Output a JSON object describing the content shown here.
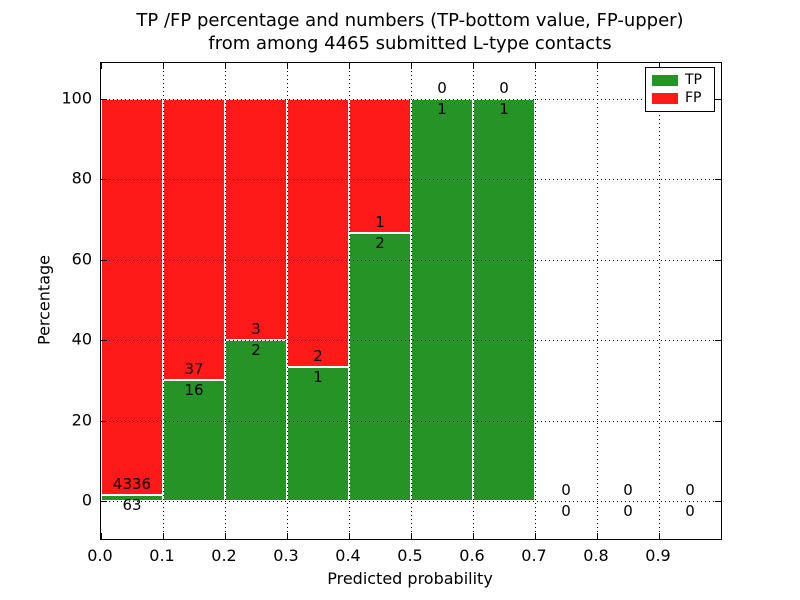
{
  "figure": {
    "title_line1": "TP /FP percentage and numbers (TP-bottom value, FP-upper)",
    "title_line2": "from among 4465 submitted L-type contacts"
  },
  "chart_data": {
    "type": "bar",
    "stacked": true,
    "orientation": "vertical",
    "title": "TP /FP percentage and numbers (TP-bottom value, FP-upper) from among 4465 submitted L-type contacts",
    "xlabel": "Predicted probability",
    "ylabel": "Percentage",
    "xlim": [
      0.0,
      1.0
    ],
    "ylim": [
      -10,
      110
    ],
    "grid": "dotted",
    "legend_position": "upper right",
    "xticks": [
      0.0,
      0.1,
      0.2,
      0.3,
      0.4,
      0.5,
      0.6,
      0.7,
      0.8,
      0.9
    ],
    "xtick_labels": [
      "0.0",
      "0.1",
      "0.2",
      "0.3",
      "0.4",
      "0.5",
      "0.6",
      "0.7",
      "0.8",
      "0.9"
    ],
    "yticks": [
      0,
      20,
      40,
      60,
      80,
      100
    ],
    "ytick_labels": [
      "0",
      "20",
      "40",
      "60",
      "80",
      "100"
    ],
    "bin_width": 0.1,
    "series": [
      {
        "name": "TP",
        "color": "#269326",
        "counts": [
          63,
          16,
          2,
          1,
          2,
          1,
          1,
          0,
          0,
          0
        ]
      },
      {
        "name": "FP",
        "color": "#ff1a1a",
        "counts": [
          4336,
          37,
          3,
          2,
          1,
          0,
          0,
          0,
          0,
          0
        ]
      }
    ],
    "bins": [
      {
        "x0": 0.0,
        "x1": 0.1,
        "tp": 63,
        "fp": 4336,
        "tp_pct": 1.43
      },
      {
        "x0": 0.1,
        "x1": 0.2,
        "tp": 16,
        "fp": 37,
        "tp_pct": 30.19
      },
      {
        "x0": 0.2,
        "x1": 0.3,
        "tp": 2,
        "fp": 3,
        "tp_pct": 40.0
      },
      {
        "x0": 0.3,
        "x1": 0.4,
        "tp": 1,
        "fp": 2,
        "tp_pct": 33.33
      },
      {
        "x0": 0.4,
        "x1": 0.5,
        "tp": 2,
        "fp": 1,
        "tp_pct": 66.67
      },
      {
        "x0": 0.5,
        "x1": 0.6,
        "tp": 1,
        "fp": 0,
        "tp_pct": 100.0
      },
      {
        "x0": 0.6,
        "x1": 0.7,
        "tp": 1,
        "fp": 0,
        "tp_pct": 100.0
      },
      {
        "x0": 0.7,
        "x1": 0.8,
        "tp": 0,
        "fp": 0,
        "tp_pct": 0.0
      },
      {
        "x0": 0.8,
        "x1": 0.9,
        "tp": 0,
        "fp": 0,
        "tp_pct": 0.0
      },
      {
        "x0": 0.9,
        "x1": 1.0,
        "tp": 0,
        "fp": 0,
        "tp_pct": 0.0
      }
    ],
    "total_contacts": 4465
  },
  "legend": {
    "items": [
      {
        "label": "TP",
        "color": "#269326"
      },
      {
        "label": "FP",
        "color": "#ff1a1a"
      }
    ]
  },
  "axes": {
    "xlabel": "Predicted probability",
    "ylabel": "Percentage"
  }
}
